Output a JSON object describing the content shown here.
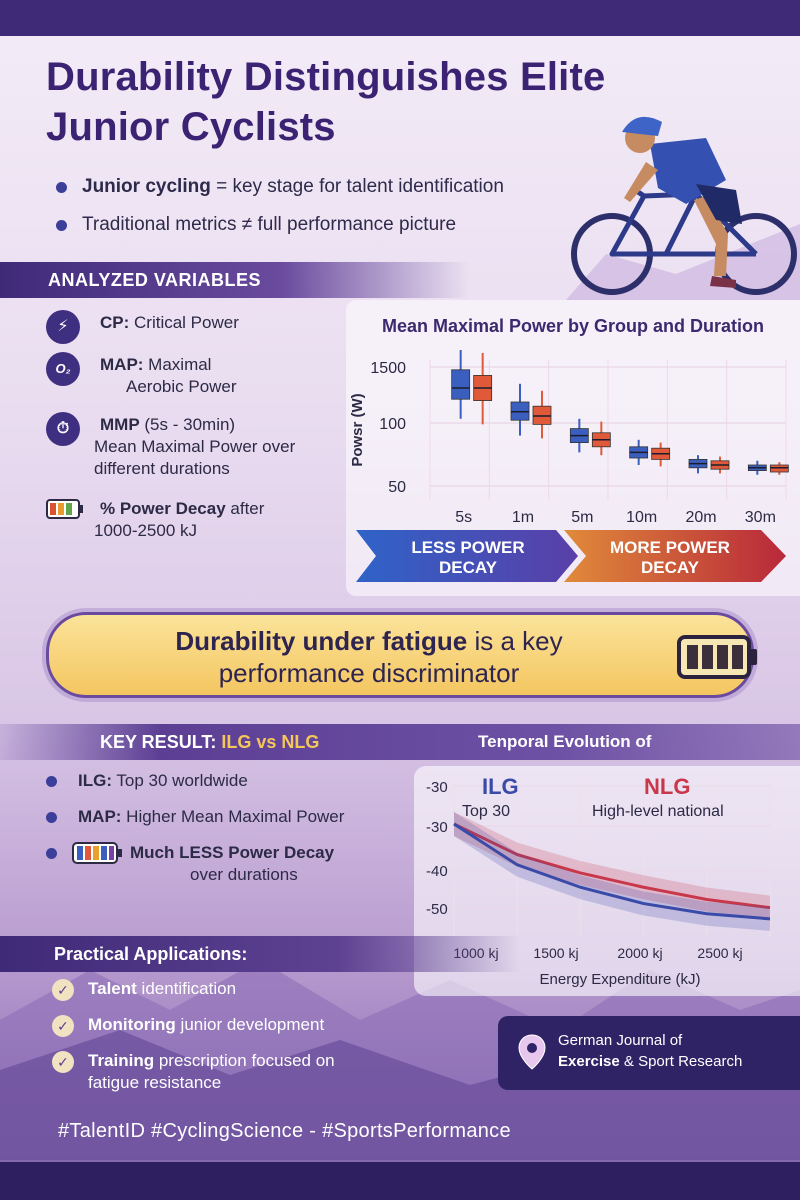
{
  "title": "Durability Distinguishes Elite Junior Cyclists",
  "intro": {
    "b1_bold": "Junior cycling",
    "b1_rest": " = key stage for talent identification",
    "b2": "Traditional metrics ≠ full performance picture"
  },
  "analyzed": {
    "heading": "ANALYZED VARIABLES",
    "items": [
      {
        "icon": "lightning-icon",
        "glyph": "⚡",
        "bold": "CP:",
        "rest": " Critical Power",
        "line2": ""
      },
      {
        "icon": "oxygen-icon",
        "glyph": "O₂",
        "bold": "MAP:",
        "rest": " Maximal",
        "line2": "Aerobic Power"
      },
      {
        "icon": "stopwatch-icon",
        "glyph": "⏱",
        "bold": "MMP",
        "rest": " (5s - 30min)",
        "line2": "Mean Maximal Power over different durations"
      },
      {
        "icon": "battery-icon",
        "glyph": "",
        "bold": "% Power Decay",
        "rest": " after",
        "line2": "1000-2500 kJ"
      }
    ]
  },
  "chart_data": [
    {
      "type": "box",
      "title": "Mean Maximal Power by Group and Duration",
      "ylabel": "Powsr (W)",
      "y_tick_labels": [
        "1500",
        "100",
        "50"
      ],
      "categories": [
        "5s",
        "1m",
        "5m",
        "10m",
        "20m",
        "30m"
      ],
      "series": [
        {
          "color": "#3a5fbf",
          "median": [
            0.8,
            0.63,
            0.46,
            0.34,
            0.26,
            0.23
          ],
          "q1": [
            0.72,
            0.57,
            0.41,
            0.3,
            0.23,
            0.21
          ],
          "q3": [
            0.93,
            0.7,
            0.51,
            0.38,
            0.29,
            0.25
          ],
          "min": [
            0.58,
            0.46,
            0.34,
            0.25,
            0.19,
            0.18
          ],
          "max": [
            1.12,
            0.83,
            0.58,
            0.43,
            0.32,
            0.28
          ]
        },
        {
          "color": "#e05a3a",
          "median": [
            0.8,
            0.6,
            0.43,
            0.33,
            0.25,
            0.23
          ],
          "q1": [
            0.71,
            0.54,
            0.38,
            0.29,
            0.22,
            0.2
          ],
          "q3": [
            0.89,
            0.67,
            0.48,
            0.37,
            0.28,
            0.25
          ],
          "min": [
            0.54,
            0.44,
            0.32,
            0.24,
            0.19,
            0.18
          ],
          "max": [
            1.05,
            0.78,
            0.56,
            0.41,
            0.31,
            0.27
          ]
        }
      ],
      "grid": true
    },
    {
      "type": "line",
      "title": "Tenporal Evolution of",
      "xlabel": "Energy Expenditure (kJ)",
      "x_tick_labels": [
        "1000 kj",
        "1500 kj",
        "2000 kj",
        "2500 kj"
      ],
      "y_tick_labels": [
        "-30",
        "-30",
        "-40",
        "-50"
      ],
      "x": [
        0,
        500,
        1000,
        1500,
        2000,
        2500
      ],
      "series": [
        {
          "name": "ILG",
          "sub": "Top 30",
          "color": "#3a4aa8",
          "values": [
            0.0,
            -0.4,
            -0.62,
            -0.78,
            -0.88,
            -0.93
          ]
        },
        {
          "name": "NLG",
          "sub": "High-level national",
          "color": "#c8384a",
          "values": [
            0.0,
            -0.3,
            -0.48,
            -0.62,
            -0.74,
            -0.82
          ]
        }
      ],
      "grid": true
    }
  ],
  "arrows": {
    "left": "LESS POWER DECAY",
    "right": "MORE POWER DECAY",
    "left_color": "#4356b8",
    "right_color": "#c0392b"
  },
  "callout": {
    "bold": "Durability under fatigue",
    "rest": " is a key performance discriminator"
  },
  "key_result": {
    "heading_pre": "KEY RESULT: ",
    "heading_hl": "ILG vs NLG",
    "items": [
      {
        "bold": "ILG:",
        "rest": " Top 30 worldwide",
        "line2": ""
      },
      {
        "bold": "MAP:",
        "rest": " Higher Mean Maximal Power",
        "line2": ""
      },
      {
        "bold": "Much LESS Power Decay",
        "rest": "",
        "line2": "over durations"
      }
    ]
  },
  "practical": {
    "heading": "Practical Applications:",
    "items": [
      {
        "bold": "Talent",
        "rest": " identification",
        "line2": ""
      },
      {
        "bold": "Monitoring",
        "rest": " junior development",
        "line2": ""
      },
      {
        "bold": "Training",
        "rest": " prescription focused on",
        "line2": "fatigue resistance"
      }
    ]
  },
  "journal": {
    "line1": "German Journal of",
    "line2_bold": "Exercise",
    "line2_rest": " & Sport Research"
  },
  "hashtags": "#TalentID #CyclingScience - #SportsPerformance"
}
